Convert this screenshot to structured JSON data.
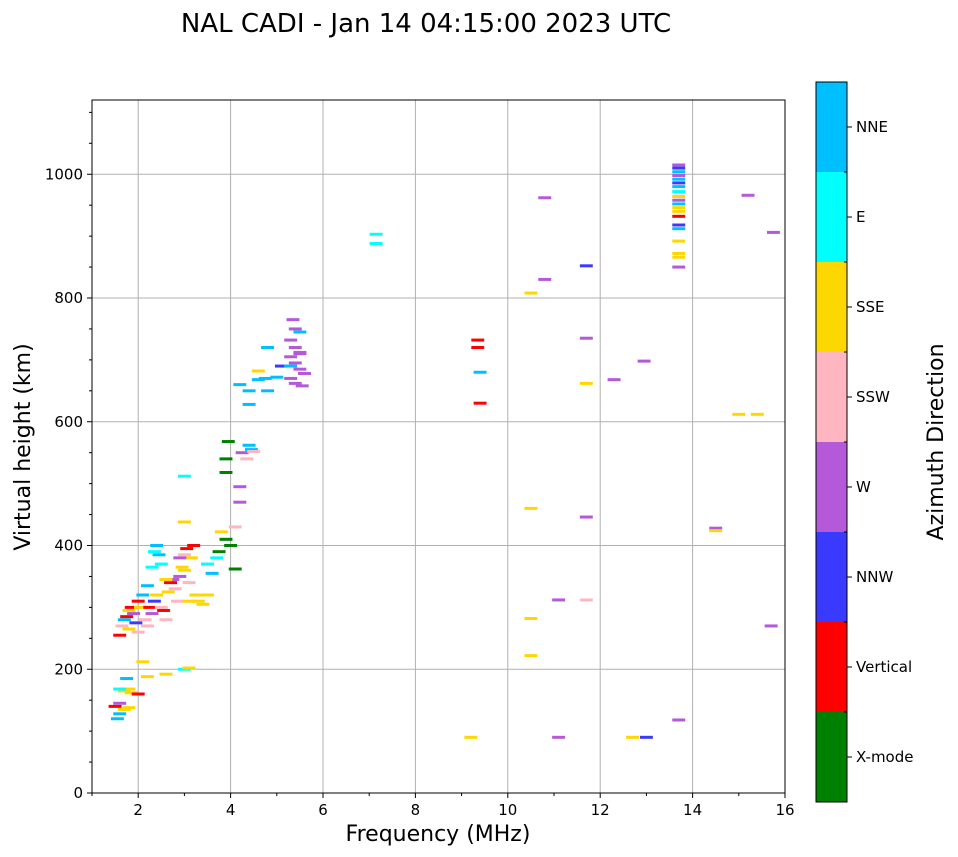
{
  "chart_data": {
    "type": "scatter",
    "title": "NAL CADI - Jan 14 04:15:00 2023 UTC",
    "xlabel": "Frequency (MHz)",
    "ylabel": "Virtual height (km)",
    "xlim": [
      1,
      16
    ],
    "ylim": [
      0,
      1120
    ],
    "xticks": [
      2,
      4,
      6,
      8,
      10,
      12,
      14,
      16
    ],
    "yticks": [
      0,
      200,
      400,
      600,
      800,
      1000
    ],
    "grid": true,
    "colorbar": {
      "title": "Azimuth Direction",
      "categories": [
        {
          "name": "X-mode",
          "color": "#008000"
        },
        {
          "name": "Vertical",
          "color": "#ff0000"
        },
        {
          "name": "NNW",
          "color": "#3a3aff"
        },
        {
          "name": "W",
          "color": "#b45ad8"
        },
        {
          "name": "SSW",
          "color": "#ffb6c1"
        },
        {
          "name": "SSE",
          "color": "#ffd700"
        },
        {
          "name": "E",
          "color": "#00ffff"
        },
        {
          "name": "NNE",
          "color": "#00bfff"
        }
      ]
    },
    "points": [
      [
        1.5,
        140,
        "Vertical"
      ],
      [
        1.6,
        128,
        "NNE"
      ],
      [
        1.55,
        120,
        "NNE"
      ],
      [
        1.7,
        135,
        "SSE"
      ],
      [
        1.8,
        138,
        "SSE"
      ],
      [
        1.6,
        145,
        "W"
      ],
      [
        1.7,
        165,
        "SSE"
      ],
      [
        1.8,
        168,
        "SSE"
      ],
      [
        1.6,
        168,
        "E"
      ],
      [
        1.85,
        162,
        "SSE"
      ],
      [
        1.75,
        185,
        "NNE"
      ],
      [
        1.6,
        255,
        "Vertical"
      ],
      [
        1.65,
        270,
        "SSW"
      ],
      [
        1.7,
        280,
        "NNE"
      ],
      [
        1.75,
        285,
        "Vertical"
      ],
      [
        1.8,
        295,
        "SSE"
      ],
      [
        1.8,
        265,
        "SSE"
      ],
      [
        1.85,
        300,
        "Vertical"
      ],
      [
        1.9,
        290,
        "W"
      ],
      [
        1.95,
        275,
        "NNW"
      ],
      [
        2.0,
        260,
        "SSW"
      ],
      [
        2.0,
        310,
        "Vertical"
      ],
      [
        2.05,
        300,
        "SSE"
      ],
      [
        2.1,
        320,
        "NNE"
      ],
      [
        2.15,
        280,
        "SSW"
      ],
      [
        2.2,
        270,
        "SSW"
      ],
      [
        2.2,
        335,
        "NNE"
      ],
      [
        2.25,
        300,
        "Vertical"
      ],
      [
        2.3,
        290,
        "W"
      ],
      [
        2.35,
        310,
        "NNW"
      ],
      [
        2.4,
        320,
        "SSE"
      ],
      [
        2.4,
        400,
        "NNE"
      ],
      [
        2.35,
        390,
        "E"
      ],
      [
        2.45,
        385,
        "NNE"
      ],
      [
        2.5,
        300,
        "SSW"
      ],
      [
        2.55,
        295,
        "Vertical"
      ],
      [
        2.6,
        280,
        "SSW"
      ],
      [
        2.65,
        325,
        "SSE"
      ],
      [
        2.7,
        340,
        "Vertical"
      ],
      [
        2.75,
        345,
        "W"
      ],
      [
        2.8,
        330,
        "SSW"
      ],
      [
        2.85,
        310,
        "SSW"
      ],
      [
        2.9,
        350,
        "W"
      ],
      [
        2.95,
        365,
        "SSE"
      ],
      [
        3.0,
        385,
        "SSW"
      ],
      [
        3.05,
        395,
        "Vertical"
      ],
      [
        3.1,
        340,
        "SSW"
      ],
      [
        3.15,
        380,
        "SSE"
      ],
      [
        3.2,
        400,
        "Vertical"
      ],
      [
        3.25,
        320,
        "SSE"
      ],
      [
        3.3,
        310,
        "SSE"
      ],
      [
        2.9,
        380,
        "W"
      ],
      [
        3.0,
        360,
        "SSE"
      ],
      [
        2.6,
        345,
        "SSE"
      ],
      [
        2.5,
        370,
        "E"
      ],
      [
        2.3,
        365,
        "E"
      ],
      [
        3.1,
        310,
        "SSE"
      ],
      [
        3.4,
        305,
        "SSE"
      ],
      [
        3.5,
        320,
        "SSE"
      ],
      [
        3.0,
        200,
        "E"
      ],
      [
        3.1,
        202,
        "SSE"
      ],
      [
        3.0,
        512,
        "E"
      ],
      [
        3.0,
        438,
        "SSE"
      ],
      [
        3.5,
        370,
        "E"
      ],
      [
        3.6,
        355,
        "NNE"
      ],
      [
        3.7,
        380,
        "E"
      ],
      [
        3.75,
        390,
        "X-mode"
      ],
      [
        3.8,
        422,
        "SSE"
      ],
      [
        3.9,
        410,
        "X-mode"
      ],
      [
        4.0,
        400,
        "X-mode"
      ],
      [
        4.1,
        362,
        "X-mode"
      ],
      [
        3.9,
        518,
        "X-mode"
      ],
      [
        3.9,
        540,
        "X-mode"
      ],
      [
        3.95,
        568,
        "X-mode"
      ],
      [
        4.1,
        430,
        "SSW"
      ],
      [
        4.2,
        470,
        "W"
      ],
      [
        4.2,
        495,
        "W"
      ],
      [
        4.25,
        550,
        "W"
      ],
      [
        4.35,
        540,
        "SSW"
      ],
      [
        4.4,
        562,
        "NNE"
      ],
      [
        4.45,
        555,
        "NNE"
      ],
      [
        4.5,
        552,
        "SSW"
      ],
      [
        2.1,
        212,
        "SSE"
      ],
      [
        2.2,
        188,
        "SSE"
      ],
      [
        2.0,
        160,
        "Vertical"
      ],
      [
        2.6,
        192,
        "SSE"
      ],
      [
        4.2,
        660,
        "NNE"
      ],
      [
        4.4,
        650,
        "NNE"
      ],
      [
        4.6,
        668,
        "NNE"
      ],
      [
        4.75,
        670,
        "NNE"
      ],
      [
        4.8,
        650,
        "NNE"
      ],
      [
        4.4,
        628,
        "NNE"
      ],
      [
        4.8,
        720,
        "NNE"
      ],
      [
        5.0,
        672,
        "NNE"
      ],
      [
        5.1,
        690,
        "NNW"
      ],
      [
        5.3,
        690,
        "NNE"
      ],
      [
        5.35,
        765,
        "W"
      ],
      [
        5.4,
        750,
        "W"
      ],
      [
        5.5,
        745,
        "NNE"
      ],
      [
        5.3,
        732,
        "W"
      ],
      [
        5.4,
        720,
        "W"
      ],
      [
        5.5,
        710,
        "W"
      ],
      [
        5.3,
        705,
        "W"
      ],
      [
        5.4,
        695,
        "W"
      ],
      [
        5.5,
        685,
        "W"
      ],
      [
        5.6,
        678,
        "W"
      ],
      [
        5.3,
        670,
        "W"
      ],
      [
        5.4,
        662,
        "W"
      ],
      [
        5.55,
        658,
        "W"
      ],
      [
        5.5,
        712,
        "W"
      ],
      [
        4.6,
        682,
        "SSE"
      ],
      [
        7.15,
        903,
        "E"
      ],
      [
        7.15,
        888,
        "E"
      ],
      [
        9.35,
        732,
        "Vertical"
      ],
      [
        9.35,
        720,
        "Vertical"
      ],
      [
        9.4,
        680,
        "NNE"
      ],
      [
        9.4,
        630,
        "Vertical"
      ],
      [
        10.5,
        808,
        "SSE"
      ],
      [
        10.8,
        962,
        "W"
      ],
      [
        10.8,
        830,
        "W"
      ],
      [
        11.7,
        852,
        "NNW"
      ],
      [
        11.7,
        735,
        "W"
      ],
      [
        11.7,
        662,
        "SSE"
      ],
      [
        12.3,
        668,
        "W"
      ],
      [
        12.95,
        698,
        "W"
      ],
      [
        10.5,
        460,
        "SSE"
      ],
      [
        11.7,
        446,
        "W"
      ],
      [
        10.5,
        282,
        "SSE"
      ],
      [
        11.1,
        312,
        "W"
      ],
      [
        11.7,
        312,
        "SSW"
      ],
      [
        10.5,
        222,
        "SSE"
      ],
      [
        9.2,
        90,
        "SSE"
      ],
      [
        11.1,
        90,
        "W"
      ],
      [
        12.7,
        90,
        "SSE"
      ],
      [
        13.0,
        90,
        "NNW"
      ],
      [
        13.7,
        118,
        "W"
      ],
      [
        14.5,
        428,
        "W"
      ],
      [
        14.5,
        424,
        "SSE"
      ],
      [
        15.0,
        612,
        "SSE"
      ],
      [
        15.4,
        612,
        "SSE"
      ],
      [
        15.2,
        966,
        "W"
      ],
      [
        15.75,
        906,
        "W"
      ],
      [
        15.7,
        270,
        "W"
      ],
      [
        13.7,
        850,
        "W"
      ],
      [
        13.7,
        872,
        "SSE"
      ],
      [
        13.7,
        866,
        "SSE"
      ],
      [
        13.7,
        892,
        "SSE"
      ],
      [
        13.7,
        912,
        "NNE"
      ],
      [
        13.7,
        918,
        "NNW"
      ],
      [
        13.7,
        932,
        "Vertical"
      ],
      [
        13.7,
        940,
        "SSE"
      ],
      [
        13.7,
        946,
        "SSE"
      ],
      [
        13.7,
        952,
        "NNE"
      ],
      [
        13.7,
        958,
        "W"
      ],
      [
        13.7,
        964,
        "SSE"
      ],
      [
        13.7,
        972,
        "E"
      ],
      [
        13.7,
        980,
        "NNE"
      ],
      [
        13.7,
        986,
        "NNW"
      ],
      [
        13.7,
        992,
        "NNE"
      ],
      [
        13.7,
        998,
        "W"
      ],
      [
        13.7,
        1004,
        "NNE"
      ],
      [
        13.7,
        1010,
        "NNW"
      ],
      [
        13.7,
        1015,
        "W"
      ]
    ]
  }
}
